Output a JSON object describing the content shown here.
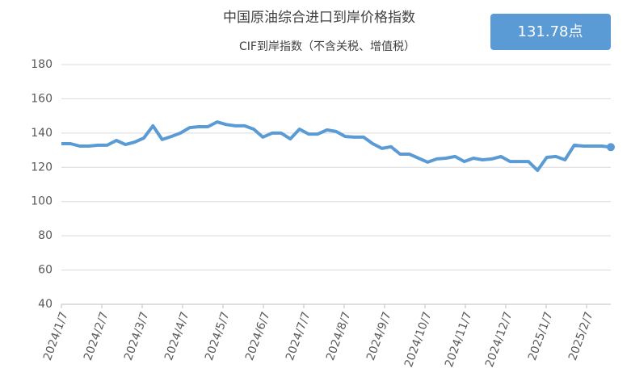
{
  "chart_data": {
    "type": "line",
    "title": "中国原油综合进口到岸价格指数",
    "subtitle": "CIF到岸指数（不含关税、增值税）",
    "annotation": "131.78点",
    "xticks": [
      "2024/1/7",
      "2024/2/7",
      "2024/3/7",
      "2024/4/7",
      "2024/5/7",
      "2024/6/7",
      "2024/7/7",
      "2024/8/7",
      "2024/9/7",
      "2024/10/7",
      "2024/11/7",
      "2024/12/7",
      "2025/1/7",
      "2025/2/7"
    ],
    "values": [
      133.8,
      133.8,
      132.4,
      132.4,
      132.9,
      132.9,
      135.7,
      133.3,
      134.7,
      137.1,
      144.2,
      136.2,
      138,
      140,
      143.2,
      143.7,
      143.7,
      146.5,
      145,
      144.2,
      144.2,
      142.3,
      137.6,
      140,
      140,
      136.6,
      142.3,
      139.4,
      139.4,
      141.8,
      140.9,
      138,
      137.6,
      137.6,
      133.8,
      131,
      132,
      127.7,
      127.7,
      125.3,
      123,
      124.9,
      125.3,
      126.3,
      123.4,
      125.3,
      124.4,
      124.9,
      126.3,
      123.4,
      123.4,
      123.4,
      118.2,
      125.8,
      126.3,
      124.4,
      132.9,
      132.4,
      132.4,
      132.4,
      131.78
    ],
    "color": "#5b9bd5",
    "ylim": [
      40,
      180
    ],
    "yticks": [
      40,
      60,
      80,
      100,
      120,
      140,
      160,
      180
    ],
    "grid": true
  }
}
